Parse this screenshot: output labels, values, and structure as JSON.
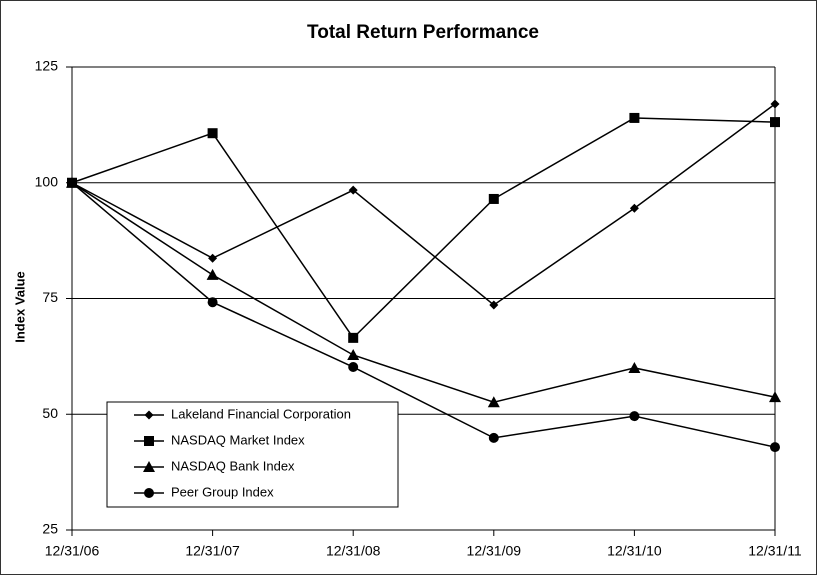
{
  "chart_data": {
    "type": "line",
    "title": "Total Return Performance",
    "y_label": "Index Value",
    "categories": [
      "12/31/06",
      "12/31/07",
      "12/31/08",
      "12/31/09",
      "12/31/10",
      "12/31/11"
    ],
    "series": [
      {
        "name": "Lakeland Financial Corporation",
        "color": "#000000",
        "marker": "diamond",
        "values": [
          100,
          83.7,
          98.4,
          73.6,
          94.5,
          117
        ]
      },
      {
        "name": "NASDAQ Market Index",
        "color": "#000000",
        "marker": "square",
        "values": [
          100,
          110.7,
          66.5,
          96.5,
          114,
          113.1
        ]
      },
      {
        "name": "NASDAQ Bank Index",
        "color": "#000000",
        "marker": "triangle",
        "values": [
          100,
          80.1,
          62.8,
          52.6,
          60,
          53.7
        ]
      },
      {
        "name": "Peer Group Index",
        "color": "#000000",
        "marker": "circle",
        "values": [
          100,
          74.2,
          60.2,
          44.9,
          49.6,
          42.9
        ]
      }
    ],
    "ylim": [
      25,
      125
    ],
    "yticks": [
      25,
      50,
      75,
      100,
      125
    ],
    "grid": true,
    "legend": "lower left"
  }
}
